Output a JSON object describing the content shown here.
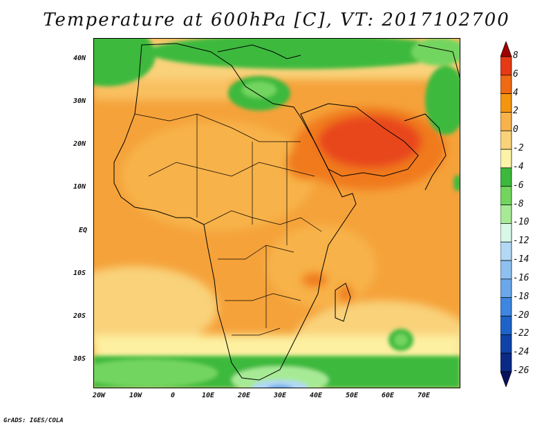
{
  "title": "Temperature at 600hPa [C], VT: 2017102700",
  "footer": "GrADS: IGES/COLA",
  "map": {
    "region": "Africa",
    "variable": "Temperature",
    "level": "600hPa",
    "units": "C"
  },
  "axes": {
    "lat_labels": [
      "40N",
      "30N",
      "20N",
      "10N",
      "EQ",
      "10S",
      "20S",
      "30S"
    ],
    "lon_labels": [
      "20W",
      "10W",
      "0",
      "10E",
      "20E",
      "30E",
      "40E",
      "50E",
      "60E",
      "70E"
    ]
  },
  "colorbar": {
    "labels": [
      "8",
      "6",
      "4",
      "2",
      "0",
      "-2",
      "-4",
      "-6",
      "-8",
      "-10",
      "-12",
      "-14",
      "-16",
      "-18",
      "-20",
      "-22",
      "-24",
      "-26"
    ],
    "colors": [
      "#a00000",
      "#e63a14",
      "#f06a14",
      "#f5950f",
      "#f7b24a",
      "#f9d27a",
      "#fdf3a8",
      "#3cb93c",
      "#72d55e",
      "#a7ea96",
      "#d8f8e8",
      "#b3d8f5",
      "#8ec0f0",
      "#6aa8ea",
      "#3e86e0",
      "#1e63c8",
      "#0f43a8",
      "#0a2a85",
      "#091260"
    ]
  }
}
